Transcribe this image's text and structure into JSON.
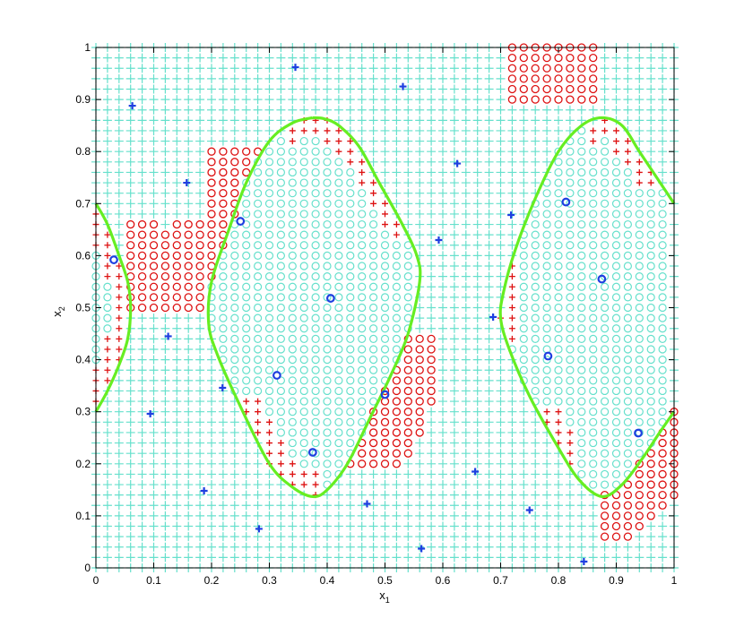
{
  "chart_data": {
    "type": "scatter",
    "title": "",
    "xlabel": "x",
    "xlabel_sub": "1",
    "ylabel": "x",
    "ylabel_sub": "2",
    "xlim": [
      0,
      1
    ],
    "ylim": [
      0,
      1
    ],
    "xticks": [
      "0",
      "0.1",
      "0.2",
      "0.3",
      "0.4",
      "0.5",
      "0.6",
      "0.7",
      "0.8",
      "0.9",
      "1"
    ],
    "yticks": [
      "0",
      "0.1",
      "0.2",
      "0.3",
      "0.4",
      "0.5",
      "0.6",
      "0.7",
      "0.8",
      "0.9",
      "1"
    ],
    "grid": "dense 0.02-step marker grid",
    "colors": {
      "grid_cross": "#66e0cc",
      "grid_circle": "#66e0cc",
      "misclassified": "#dd1111",
      "training_point": "#1f3fe0",
      "boundary": "#66ee22"
    },
    "series": [
      {
        "marker": "plus",
        "points": [
          [
            0.063,
            0.888
          ],
          [
            0.157,
            0.74
          ],
          [
            0.345,
            0.962
          ],
          [
            0.531,
            0.925
          ],
          [
            0.625,
            0.777
          ],
          [
            0.593,
            0.63
          ],
          [
            0.125,
            0.445
          ],
          [
            0.094,
            0.296
          ],
          [
            0.219,
            0.346
          ],
          [
            0.187,
            0.148
          ],
          [
            0.282,
            0.075
          ],
          [
            0.469,
            0.123
          ],
          [
            0.563,
            0.037
          ],
          [
            0.656,
            0.185
          ],
          [
            0.75,
            0.111
          ],
          [
            0.844,
            0.012
          ],
          [
            0.718,
            0.678
          ],
          [
            0.687,
            0.482
          ]
        ]
      },
      {
        "marker": "circle",
        "points": [
          [
            0.031,
            0.592
          ],
          [
            0.25,
            0.666
          ],
          [
            0.406,
            0.518
          ],
          [
            0.313,
            0.37
          ],
          [
            0.375,
            0.222
          ],
          [
            0.5,
            0.333
          ],
          [
            0.813,
            0.703
          ],
          [
            0.875,
            0.555
          ],
          [
            0.782,
            0.407
          ],
          [
            0.938,
            0.259
          ]
        ]
      }
    ],
    "decision_boundary": [
      {
        "x": [
          0.0,
          0.02,
          0.04,
          0.055,
          0.06,
          0.055,
          0.04,
          0.02,
          0.0
        ],
        "y": [
          0.7,
          0.66,
          0.6,
          0.55,
          0.5,
          0.44,
          0.39,
          0.34,
          0.3
        ]
      },
      {
        "x": [
          0.375,
          0.34,
          0.3,
          0.26,
          0.23,
          0.2,
          0.195,
          0.21,
          0.25,
          0.3,
          0.34,
          0.375,
          0.4,
          0.435,
          0.475,
          0.51,
          0.54,
          0.56,
          0.555,
          0.53,
          0.49,
          0.455,
          0.42,
          0.395,
          0.375
        ],
        "y": [
          0.865,
          0.855,
          0.82,
          0.74,
          0.65,
          0.55,
          0.47,
          0.41,
          0.31,
          0.2,
          0.155,
          0.137,
          0.15,
          0.2,
          0.29,
          0.37,
          0.45,
          0.55,
          0.6,
          0.66,
          0.74,
          0.81,
          0.85,
          0.863,
          0.865
        ]
      },
      {
        "x": [
          1.0,
          0.97,
          0.94,
          0.91,
          0.875,
          0.84,
          0.8,
          0.76,
          0.725,
          0.705,
          0.7,
          0.715,
          0.75,
          0.795,
          0.835,
          0.875,
          0.91,
          0.945,
          0.975,
          1.0
        ],
        "y": [
          0.7,
          0.75,
          0.8,
          0.85,
          0.865,
          0.85,
          0.8,
          0.71,
          0.61,
          0.53,
          0.48,
          0.42,
          0.33,
          0.24,
          0.17,
          0.137,
          0.16,
          0.21,
          0.26,
          0.3
        ]
      }
    ],
    "misclassified_grid": [
      {
        "marker": "circle",
        "region": "top-right"
      },
      {
        "marker": "circle",
        "region": "left"
      },
      {
        "marker": "circle",
        "region": "middle"
      },
      {
        "marker": "circle",
        "region": "bottom-right"
      },
      {
        "marker": "plus",
        "region": "boundary-edges"
      }
    ]
  }
}
